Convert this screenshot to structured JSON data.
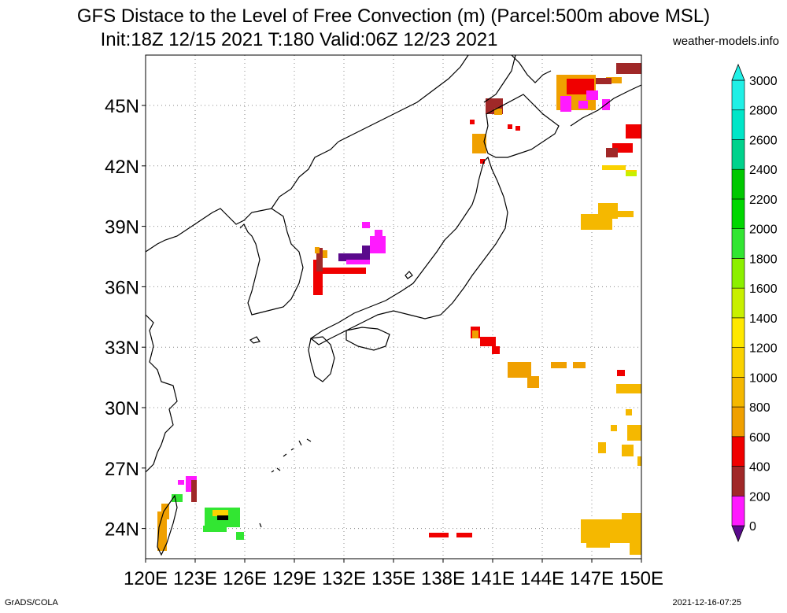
{
  "title": {
    "line1": "GFS Distace to the Level of Free Convection (m) (Parcel:500m above MSL)",
    "line2": "Init:18Z 12/15 2021 T:180 Valid:06Z 12/23 2021"
  },
  "credit": "weather-models.info",
  "footer": {
    "left": "GrADS/COLA",
    "right": "2021-12-16-07:25"
  },
  "map": {
    "lon_range": [
      120,
      150
    ],
    "lat_range": [
      22.5,
      47.5
    ],
    "lon_ticks": [
      "120E",
      "123E",
      "126E",
      "129E",
      "132E",
      "135E",
      "138E",
      "141E",
      "144E",
      "147E",
      "150E"
    ],
    "lat_ticks": [
      "24N",
      "27N",
      "30N",
      "33N",
      "36N",
      "39N",
      "42N",
      "45N"
    ],
    "grid": "dotted"
  },
  "colorbar": {
    "labels": [
      "0",
      "200",
      "400",
      "600",
      "800",
      "1000",
      "1200",
      "1400",
      "1600",
      "1800",
      "2000",
      "2200",
      "2400",
      "2600",
      "2800",
      "3000"
    ],
    "colors": [
      "#5a0a8c",
      "#ff1aff",
      "#a02828",
      "#f00000",
      "#f0a000",
      "#f5b800",
      "#fad200",
      "#ffe800",
      "#c8f000",
      "#8cf000",
      "#32e632",
      "#00d700",
      "#00c800",
      "#00d28c",
      "#00e6c8",
      "#20f0e6"
    ]
  }
}
